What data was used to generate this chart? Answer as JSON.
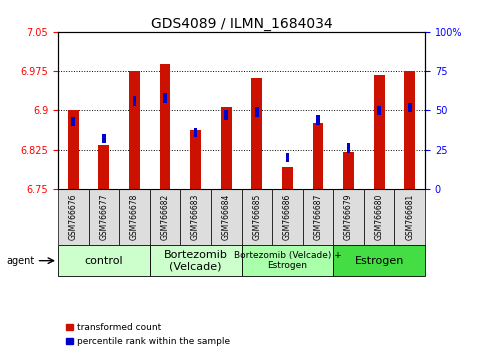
{
  "title": "GDS4089 / ILMN_1684034",
  "samples": [
    "GSM766676",
    "GSM766677",
    "GSM766678",
    "GSM766682",
    "GSM766683",
    "GSM766684",
    "GSM766685",
    "GSM766686",
    "GSM766687",
    "GSM766679",
    "GSM766680",
    "GSM766681"
  ],
  "red_values": [
    6.9,
    6.835,
    6.975,
    6.988,
    6.862,
    6.907,
    6.962,
    6.793,
    6.877,
    6.821,
    6.967,
    6.975
  ],
  "blue_values_pct": [
    43,
    32,
    56,
    58,
    36,
    47,
    49,
    20,
    44,
    26,
    50,
    52
  ],
  "ylim_left": [
    6.75,
    7.05
  ],
  "ylim_right": [
    0,
    100
  ],
  "yticks_left": [
    6.75,
    6.825,
    6.9,
    6.975,
    7.05
  ],
  "yticks_right": [
    0,
    25,
    50,
    75,
    100
  ],
  "groups": [
    {
      "label": "control",
      "start": 0,
      "end": 3,
      "color": "#ccffcc"
    },
    {
      "label": "Bortezomib\n(Velcade)",
      "start": 3,
      "end": 6,
      "color": "#ccffcc"
    },
    {
      "label": "Bortezomib (Velcade) +\nEstrogen",
      "start": 6,
      "end": 9,
      "color": "#aaffaa"
    },
    {
      "label": "Estrogen",
      "start": 9,
      "end": 12,
      "color": "#44dd44"
    }
  ],
  "bar_width": 0.35,
  "blue_bar_width": 0.12,
  "blue_bar_height": 0.018,
  "red_color": "#cc1100",
  "blue_color": "#0000cc",
  "baseline": 6.75,
  "legend_red": "transformed count",
  "legend_blue": "percentile rank within the sample",
  "agent_label": "agent",
  "title_fontsize": 10,
  "tick_fontsize": 7,
  "sample_fontsize": 5.5,
  "group_fontsize": 8,
  "group_fontsize_small": 6.5
}
